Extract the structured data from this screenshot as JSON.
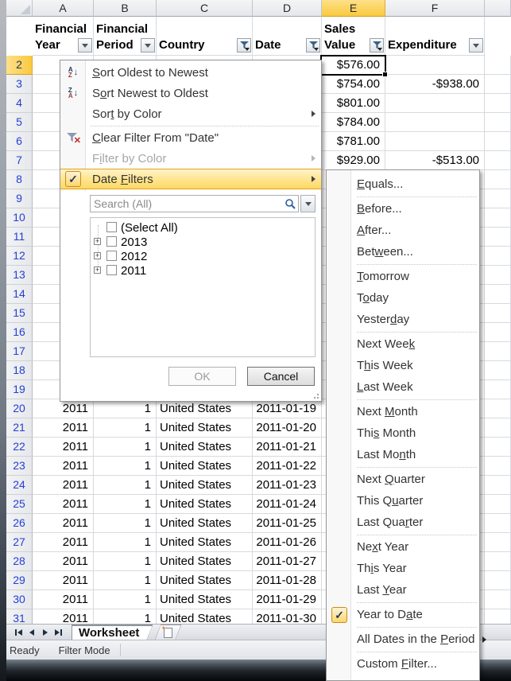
{
  "spreadsheet": {
    "column_letters": [
      "A",
      "B",
      "C",
      "D",
      "E",
      "F",
      ""
    ],
    "selected_column_letter": "E",
    "selected_cell": "E2",
    "selected_row": 2,
    "header_row": [
      {
        "letter": "A",
        "label": "Financial Year",
        "filter_button": "dropdown"
      },
      {
        "letter": "B",
        "label": "Financial Period",
        "filter_button": "dropdown"
      },
      {
        "letter": "C",
        "label": "Country",
        "filter_button": "filtered"
      },
      {
        "letter": "D",
        "label": "Date",
        "filter_button": "filtered"
      },
      {
        "letter": "E",
        "label": "Sales Value",
        "filter_button": "filtered"
      },
      {
        "letter": "F",
        "label": "Expenditure",
        "filter_button": "dropdown"
      }
    ],
    "first_row": 2,
    "last_row": 31,
    "cells": {
      "2": {
        "E": "$576.00"
      },
      "3": {
        "E": "$754.00",
        "F": "-$938.00"
      },
      "4": {
        "E": "$801.00"
      },
      "5": {
        "E": "$784.00"
      },
      "6": {
        "E": "$781.00"
      },
      "7": {
        "E": "$929.00",
        "F": "-$513.00"
      },
      "20": {
        "A": "2011",
        "B": "1",
        "C": "United States",
        "D": "2011-01-19"
      },
      "21": {
        "A": "2011",
        "B": "1",
        "C": "United States",
        "D": "2011-01-20"
      },
      "22": {
        "A": "2011",
        "B": "1",
        "C": "United States",
        "D": "2011-01-21"
      },
      "23": {
        "A": "2011",
        "B": "1",
        "C": "United States",
        "D": "2011-01-22"
      },
      "24": {
        "A": "2011",
        "B": "1",
        "C": "United States",
        "D": "2011-01-23"
      },
      "25": {
        "A": "2011",
        "B": "1",
        "C": "United States",
        "D": "2011-01-24"
      },
      "26": {
        "A": "2011",
        "B": "1",
        "C": "United States",
        "D": "2011-01-25"
      },
      "27": {
        "A": "2011",
        "B": "1",
        "C": "United States",
        "D": "2011-01-26"
      },
      "28": {
        "A": "2011",
        "B": "1",
        "C": "United States",
        "D": "2011-01-27"
      },
      "29": {
        "A": "2011",
        "B": "1",
        "C": "United States",
        "D": "2011-01-28"
      },
      "30": {
        "A": "2011",
        "B": "1",
        "C": "United States",
        "D": "2011-01-29"
      },
      "31": {
        "A": "2011",
        "B": "1",
        "C": "United States",
        "D": "2011-01-30"
      }
    }
  },
  "filter_menu": {
    "items": [
      {
        "label": "Sort Oldest to Newest",
        "u": 0,
        "icon": "sort-az"
      },
      {
        "label": "Sort Newest to Oldest",
        "u": 1,
        "icon": "sort-za"
      },
      {
        "label": "Sort by Color",
        "u": 3,
        "arrow": true
      },
      {
        "type": "sep"
      },
      {
        "label": "Clear Filter From \"Date\"",
        "u": 0,
        "icon": "clear-filter"
      },
      {
        "label": "Filter by Color",
        "u": 1,
        "arrow": true,
        "disabled": true
      },
      {
        "label": "Date Filters",
        "u": 5,
        "arrow": true,
        "checked": true,
        "highlighted": true
      }
    ],
    "search": {
      "placeholder": "Search (All)"
    },
    "tree": {
      "items": [
        {
          "label": "(Select All)",
          "expandable": false,
          "checked": false
        },
        {
          "label": "2013",
          "expandable": true,
          "checked": false
        },
        {
          "label": "2012",
          "expandable": true,
          "checked": false
        },
        {
          "label": "2011",
          "expandable": true,
          "checked": false
        }
      ]
    },
    "ok_label": "OK",
    "cancel_label": "Cancel"
  },
  "date_filters_submenu": {
    "items": [
      {
        "label": "Equals...",
        "u": 0
      },
      {
        "type": "sep"
      },
      {
        "label": "Before...",
        "u": 0
      },
      {
        "label": "After...",
        "u": 0
      },
      {
        "label": "Between...",
        "u": 3
      },
      {
        "type": "sep"
      },
      {
        "label": "Tomorrow",
        "u": 0
      },
      {
        "label": "Today",
        "u": 1
      },
      {
        "label": "Yesterday",
        "u": 6
      },
      {
        "type": "sep"
      },
      {
        "label": "Next Week",
        "u": 8
      },
      {
        "label": "This Week",
        "u": 1
      },
      {
        "label": "Last Week",
        "u": 0
      },
      {
        "type": "sep"
      },
      {
        "label": "Next Month",
        "u": 5
      },
      {
        "label": "This Month",
        "u": 3
      },
      {
        "label": "Last Month",
        "u": 7
      },
      {
        "type": "sep"
      },
      {
        "label": "Next Quarter",
        "u": 5
      },
      {
        "label": "This Quarter",
        "u": 6
      },
      {
        "label": "Last Quarter",
        "u": 8
      },
      {
        "type": "sep"
      },
      {
        "label": "Next Year",
        "u": 2
      },
      {
        "label": "This Year",
        "u": 2
      },
      {
        "label": "Last Year",
        "u": 5
      },
      {
        "type": "sep"
      },
      {
        "label": "Year to Date",
        "u": 9,
        "checked": true
      },
      {
        "type": "sep"
      },
      {
        "label": "All Dates in the Period",
        "u": 17,
        "arrow": "inline"
      },
      {
        "type": "sep"
      },
      {
        "label": "Custom Filter...",
        "u": 7
      }
    ]
  },
  "sheet_tab_bar": {
    "tabs": [
      {
        "label": "Worksheet",
        "active": true
      }
    ]
  },
  "status_bar": {
    "items": [
      "Ready",
      "Filter Mode"
    ]
  },
  "colors": {
    "accent_amber": "#F9C93F",
    "menu_highlight": "#FFD964",
    "menu_highlight_border": "#E3A21A",
    "filtered_row_number_blue": "#2440D4",
    "grid_line": "#D6DAE0",
    "clear_filter_x_red": "#CC2222"
  }
}
